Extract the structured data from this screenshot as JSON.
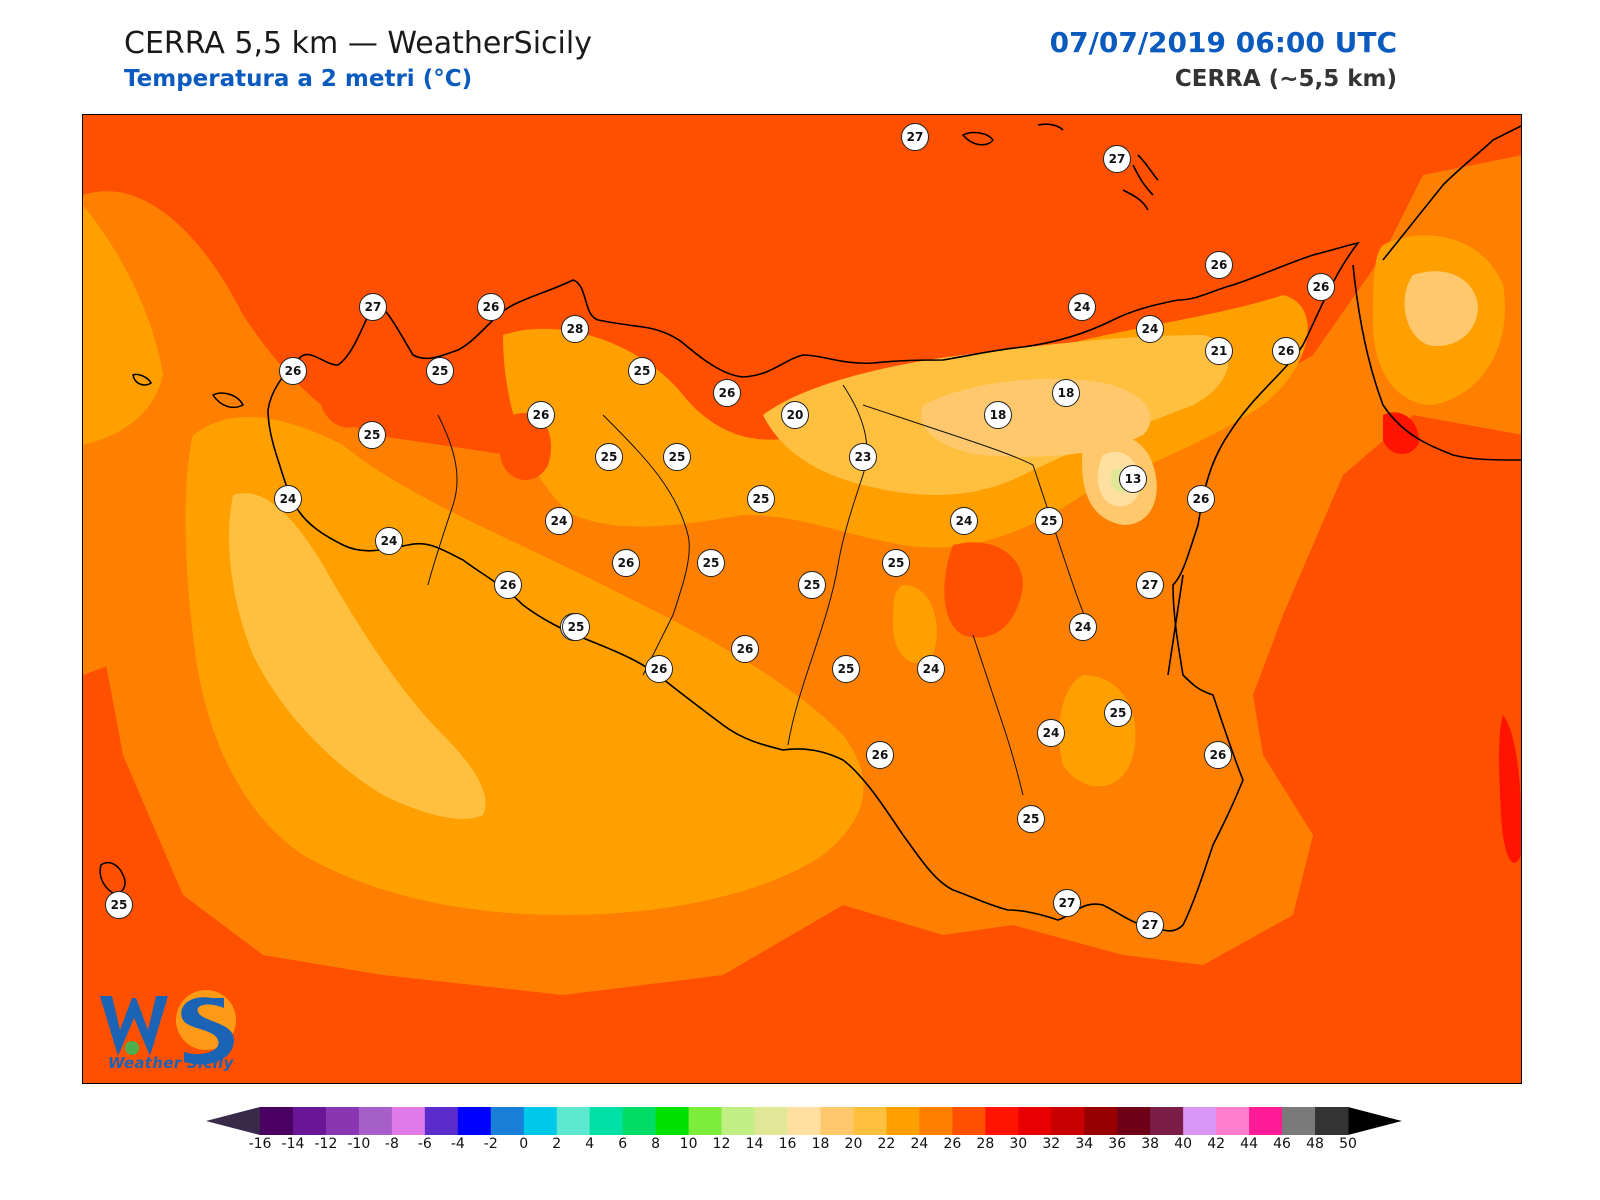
{
  "header": {
    "title": "CERRA 5,5 km — WeatherSicily",
    "subtitle": "Temperatura a 2 metri (°C)",
    "datetime": "07/07/2019 06:00 UTC",
    "model": "CERRA (~5,5 km)"
  },
  "stations": [
    "27",
    "27",
    "26",
    "26",
    "27",
    "26",
    "28",
    "26",
    "24",
    "24",
    "25",
    "25",
    "21",
    "26",
    "20",
    "18",
    "18",
    "25",
    "26",
    "26",
    "24",
    "25",
    "23",
    "13",
    "24",
    "25",
    "24",
    "25",
    "24",
    "26",
    "26",
    "25",
    "25",
    "27",
    "24",
    "26",
    "25",
    "26",
    "25",
    "24",
    "26",
    "25",
    "24",
    "26",
    "25",
    "26",
    "25",
    "26",
    "27",
    "27",
    "25",
    "25"
  ],
  "colorbar": {
    "colors": [
      "#4a0060",
      "#6a1596",
      "#8a36b3",
      "#a65ec8",
      "#df7ae8",
      "#5a2ccb",
      "#0000ff",
      "#1a7fd8",
      "#00c8e8",
      "#5de8d0",
      "#00e0a4",
      "#00dc66",
      "#00e100",
      "#7ded3c",
      "#c2ee86",
      "#e0e898",
      "#ffe0a0",
      "#ffc86c",
      "#ffc040",
      "#ffa000",
      "#ff8000",
      "#ff5000",
      "#ff1400",
      "#e80000",
      "#c80000",
      "#960000",
      "#6e0018",
      "#7a1e48",
      "#d896f5",
      "#ff7ecb",
      "#ff1c96",
      "#7a7a7a",
      "#333333"
    ],
    "ticks": [
      "-16",
      "-14",
      "-12",
      "-10",
      "-8",
      "-6",
      "-4",
      "-2",
      "0",
      "2",
      "4",
      "6",
      "8",
      "10",
      "12",
      "14",
      "16",
      "18",
      "20",
      "22",
      "24",
      "26",
      "28",
      "30",
      "32",
      "34",
      "36",
      "38",
      "40",
      "42",
      "44",
      "46",
      "48",
      "50"
    ]
  },
  "logo": {
    "letters": "WS",
    "caption": "Weather Sicily"
  }
}
